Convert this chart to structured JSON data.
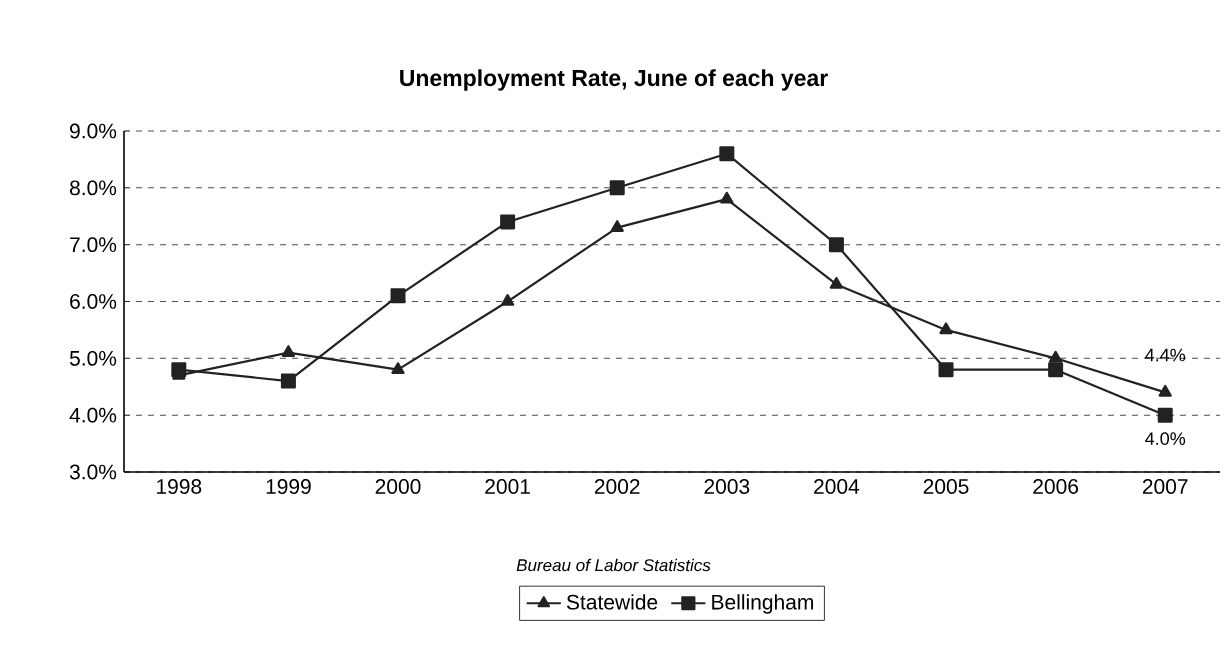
{
  "chart_data": {
    "type": "line",
    "title": "Unemployment Rate, June of each year",
    "categories": [
      "1998",
      "1999",
      "2000",
      "2001",
      "2002",
      "2003",
      "2004",
      "2005",
      "2006",
      "2007"
    ],
    "series": [
      {
        "name": "Statewide",
        "color": "#222222",
        "marker": "triangle",
        "values": [
          4.7,
          5.1,
          4.8,
          6.0,
          7.3,
          7.8,
          6.3,
          5.5,
          5.0,
          4.4
        ],
        "value_labels": [
          null,
          null,
          null,
          null,
          null,
          null,
          null,
          null,
          null,
          "4.4%"
        ]
      },
      {
        "name": "Bellingham",
        "color": "#222222",
        "marker": "square",
        "values": [
          4.8,
          4.6,
          6.1,
          7.4,
          8.0,
          8.6,
          7.0,
          4.8,
          4.8,
          4.0
        ],
        "value_labels": [
          null,
          null,
          null,
          null,
          null,
          null,
          null,
          null,
          null,
          "4.0%"
        ]
      }
    ],
    "ylim": [
      3,
      9
    ],
    "yticks": [
      {
        "value": 3,
        "label": "3.0%"
      },
      {
        "value": 4,
        "label": "4.0%"
      },
      {
        "value": 5,
        "label": "5.0%"
      },
      {
        "value": 6,
        "label": "6.0%"
      },
      {
        "value": 7,
        "label": "7.0%"
      },
      {
        "value": 8,
        "label": "8.0%"
      },
      {
        "value": 9,
        "label": "9.0%"
      }
    ],
    "grid": "y",
    "legend": "bottom",
    "line_style": "solid",
    "annotations": [
      "Bureau of Labor Statistics"
    ]
  }
}
